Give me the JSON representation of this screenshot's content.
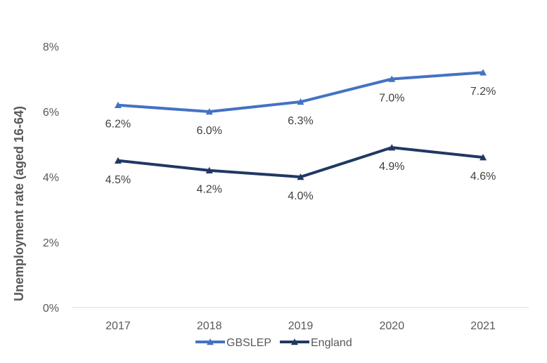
{
  "chart_data": {
    "type": "line",
    "title": "",
    "xlabel": "",
    "ylabel": "Unemployment rate (aged 16-64)",
    "categories": [
      "2017",
      "2018",
      "2019",
      "2020",
      "2021"
    ],
    "ylim": [
      0,
      8
    ],
    "yticks": [
      0,
      2,
      4,
      6,
      8
    ],
    "ytick_labels": [
      "0%",
      "2%",
      "4%",
      "6%",
      "8%"
    ],
    "grid": false,
    "legend_position": "bottom",
    "series": [
      {
        "name": "GBSLEP",
        "color": "#4472C4",
        "marker": "triangle",
        "values": [
          6.2,
          6.0,
          6.3,
          7.0,
          7.2
        ],
        "labels": [
          "6.2%",
          "6.0%",
          "6.3%",
          "7.0%",
          "7.2%"
        ],
        "label_position": [
          "below",
          "below",
          "below",
          "below",
          "below"
        ]
      },
      {
        "name": "England",
        "color": "#203864",
        "marker": "triangle",
        "values": [
          4.5,
          4.2,
          4.0,
          4.9,
          4.6
        ],
        "labels": [
          "4.5%",
          "4.2%",
          "4.0%",
          "4.9%",
          "4.6%"
        ],
        "label_position": [
          "below",
          "below",
          "below",
          "below",
          "below"
        ]
      }
    ]
  }
}
